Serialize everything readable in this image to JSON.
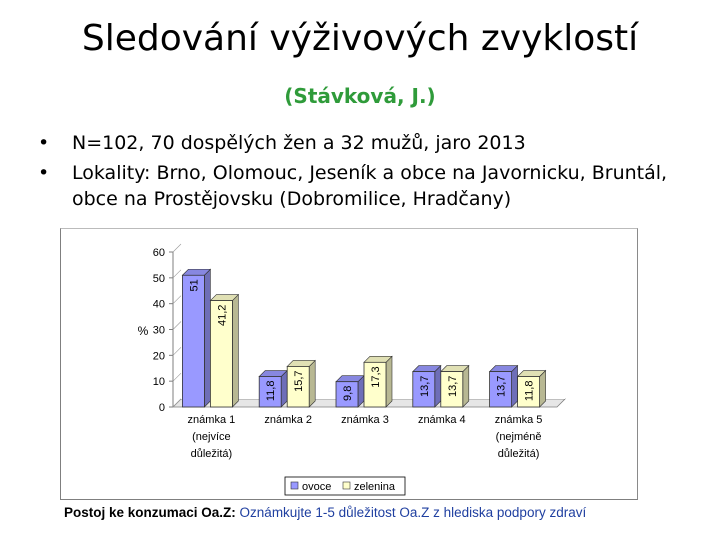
{
  "slide": {
    "title": "Sledování výživových zvyklostí",
    "subtitle": "(Stávková, J.)",
    "bullets": [
      "N=102, 70 dospělých žen a 32 mužů, jaro 2013",
      "Lokality: Brno, Olomouc, Jeseník a obce na Javornicku, Bruntál, obce na Prostějovsku (Dobromilice, Hradčany)"
    ],
    "caption_bold": "Postoj ke konzumaci Oa.Z:",
    "caption_text": " Oznámkujte 1-5 důležitost Oa.Z z hlediska podpory zdraví"
  },
  "chart_data": {
    "type": "bar",
    "ylabel": "%",
    "ylim": [
      0,
      60
    ],
    "yticks": [
      0,
      10,
      20,
      30,
      40,
      50,
      60
    ],
    "categories": [
      [
        "známka 1",
        "(nejvíce",
        "důležitá)"
      ],
      [
        "známka 2"
      ],
      [
        "známka 3"
      ],
      [
        "známka 4"
      ],
      [
        "známka 5",
        "(nejméně",
        "důležitá)"
      ]
    ],
    "series": [
      {
        "name": "ovoce",
        "color": "#9999ff",
        "values": [
          51,
          11.8,
          9.8,
          13.7,
          13.7
        ]
      },
      {
        "name": "zelenina",
        "color": "#ffffcc",
        "values": [
          41.2,
          15.7,
          17.3,
          13.7,
          11.8
        ]
      }
    ],
    "value_labels": [
      [
        "51",
        "11,8",
        "9,8",
        "13,7",
        "13,7"
      ],
      [
        "41,2",
        "15,7",
        "17,3",
        "13,7",
        "11,8"
      ]
    ],
    "legend_position": "bottom-right",
    "grid": false
  }
}
